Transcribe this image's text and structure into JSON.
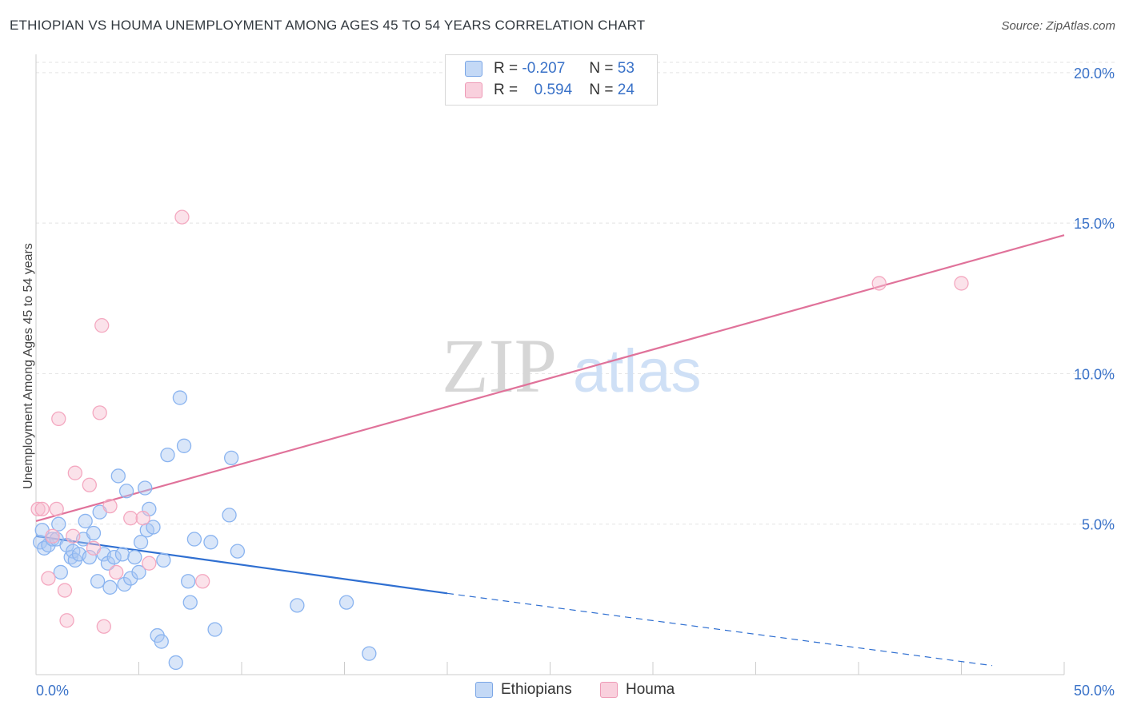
{
  "title": "ETHIOPIAN VS HOUMA UNEMPLOYMENT AMONG AGES 45 TO 54 YEARS CORRELATION CHART",
  "source": "Source: ZipAtlas.com",
  "watermark": {
    "zip": "ZIP",
    "atlas": "atlas"
  },
  "legend": {
    "r_label": "R =",
    "n_label": "N =",
    "rows": [
      {
        "r": "-0.207",
        "n": "53"
      },
      {
        "r": "0.594",
        "n": "24"
      }
    ]
  },
  "chart_data": {
    "type": "scatter",
    "title": "ETHIOPIAN VS HOUMA UNEMPLOYMENT AMONG AGES 45 TO 54 YEARS CORRELATION CHART",
    "xlabel": "",
    "ylabel": "Unemployment Among Ages 45 to 54 years",
    "xlim": [
      0,
      50
    ],
    "ylim": [
      0,
      20.5
    ],
    "x_tick_labels": [
      "0.0%",
      "50.0%"
    ],
    "y_ticks": [
      5,
      10,
      15,
      20
    ],
    "y_tick_labels": [
      "5.0%",
      "10.0%",
      "15.0%",
      "20.0%"
    ],
    "grid": true,
    "legend_position": "top-center",
    "series": [
      {
        "name": "Ethiopians",
        "color": "#8ab4f0",
        "line_color": "#2f6fd1",
        "r": -0.207,
        "n": 53,
        "trend": {
          "x0": 0,
          "y0": 4.6,
          "x1": 20,
          "y1": 2.7,
          "dash_to_x": 46.5,
          "dash_to_y": 0.3
        },
        "points": [
          [
            0.2,
            4.4
          ],
          [
            0.3,
            4.8
          ],
          [
            0.4,
            4.2
          ],
          [
            0.6,
            4.3
          ],
          [
            0.8,
            4.5
          ],
          [
            1.0,
            4.5
          ],
          [
            1.1,
            5.0
          ],
          [
            1.2,
            3.4
          ],
          [
            1.5,
            4.3
          ],
          [
            1.7,
            3.9
          ],
          [
            1.8,
            4.1
          ],
          [
            1.9,
            3.8
          ],
          [
            2.1,
            4.0
          ],
          [
            2.3,
            4.5
          ],
          [
            2.4,
            5.1
          ],
          [
            2.6,
            3.9
          ],
          [
            2.8,
            4.7
          ],
          [
            3.0,
            3.1
          ],
          [
            3.1,
            5.4
          ],
          [
            3.3,
            4.0
          ],
          [
            3.5,
            3.7
          ],
          [
            3.6,
            2.9
          ],
          [
            3.8,
            3.9
          ],
          [
            4.0,
            6.6
          ],
          [
            4.2,
            4.0
          ],
          [
            4.3,
            3.0
          ],
          [
            4.4,
            6.1
          ],
          [
            4.6,
            3.2
          ],
          [
            4.8,
            3.9
          ],
          [
            5.0,
            3.4
          ],
          [
            5.1,
            4.4
          ],
          [
            5.3,
            6.2
          ],
          [
            5.4,
            4.8
          ],
          [
            5.5,
            5.5
          ],
          [
            5.7,
            4.9
          ],
          [
            5.9,
            1.3
          ],
          [
            6.1,
            1.1
          ],
          [
            6.2,
            3.8
          ],
          [
            6.4,
            7.3
          ],
          [
            6.8,
            0.4
          ],
          [
            7.0,
            9.2
          ],
          [
            7.2,
            7.6
          ],
          [
            7.4,
            3.1
          ],
          [
            7.5,
            2.4
          ],
          [
            7.7,
            4.5
          ],
          [
            8.5,
            4.4
          ],
          [
            8.7,
            1.5
          ],
          [
            9.4,
            5.3
          ],
          [
            9.5,
            7.2
          ],
          [
            9.8,
            4.1
          ],
          [
            12.7,
            2.3
          ],
          [
            15.1,
            2.4
          ],
          [
            16.2,
            0.7
          ]
        ]
      },
      {
        "name": "Houma",
        "color": "#f4a8c0",
        "line_color": "#e0729a",
        "r": 0.594,
        "n": 24,
        "trend": {
          "x0": 0,
          "y0": 5.1,
          "x1": 50,
          "y1": 14.6
        },
        "points": [
          [
            0.1,
            5.5
          ],
          [
            0.3,
            5.5
          ],
          [
            0.6,
            3.2
          ],
          [
            0.8,
            4.6
          ],
          [
            1.0,
            5.5
          ],
          [
            1.1,
            8.5
          ],
          [
            1.4,
            2.8
          ],
          [
            1.5,
            1.8
          ],
          [
            1.8,
            4.6
          ],
          [
            1.9,
            6.7
          ],
          [
            2.6,
            6.3
          ],
          [
            2.8,
            4.2
          ],
          [
            3.1,
            8.7
          ],
          [
            3.2,
            11.6
          ],
          [
            3.3,
            1.6
          ],
          [
            3.6,
            5.6
          ],
          [
            3.9,
            3.4
          ],
          [
            4.6,
            5.2
          ],
          [
            5.2,
            5.2
          ],
          [
            5.5,
            3.7
          ],
          [
            7.1,
            15.2
          ],
          [
            8.1,
            3.1
          ],
          [
            41.0,
            13.0
          ],
          [
            45.0,
            13.0
          ]
        ]
      }
    ]
  }
}
